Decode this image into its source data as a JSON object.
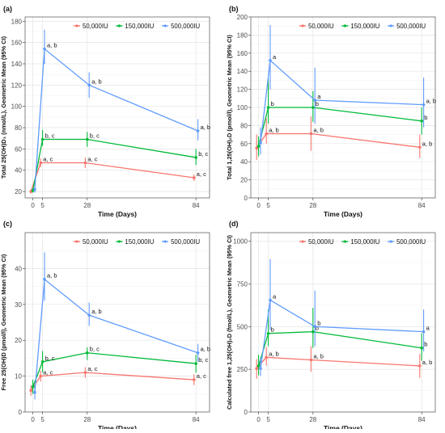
{
  "colors": {
    "s50k": "#F8766D",
    "s150k": "#00BA38",
    "s500k": "#619CFF",
    "border": "#666666"
  },
  "chart_data": [
    {
      "type": "line",
      "panel_label": "(a)",
      "xlabel": "Time (Days)",
      "ylabel": "Total 25(OH)D₃ (nmol/L), Geometric Mean (95% CI)",
      "x": [
        0,
        5,
        28,
        84
      ],
      "xticks": [
        "0",
        "5",
        "28",
        "84"
      ],
      "xlim": [
        -4,
        91
      ],
      "ylim": [
        14,
        184
      ],
      "yticks": [
        20,
        40,
        60,
        80,
        100,
        120,
        140,
        160,
        180
      ],
      "grid": true,
      "legend_position": "top-right",
      "series": [
        {
          "name": "50,000IU",
          "color": "#F8766D",
          "dx": -1.0,
          "values": [
            20,
            47,
            47,
            33
          ],
          "lower": [
            18,
            43,
            42,
            30
          ],
          "upper": [
            22,
            51,
            52,
            36
          ],
          "labels": [
            "",
            "a, c",
            "a, c",
            "a, c"
          ]
        },
        {
          "name": "150,000IU",
          "color": "#00BA38",
          "dx": 0,
          "values": [
            21,
            69,
            69,
            52
          ],
          "lower": [
            19,
            63,
            62,
            45
          ],
          "upper": [
            23,
            78,
            76,
            60
          ],
          "labels": [
            "",
            "b, c",
            "b, c",
            "b, c"
          ]
        },
        {
          "name": "500,000IU",
          "color": "#619CFF",
          "dx": 1.0,
          "values": [
            22,
            154,
            120,
            77
          ],
          "lower": [
            19,
            140,
            108,
            68
          ],
          "upper": [
            24,
            172,
            132,
            88
          ],
          "labels": [
            "",
            "a, b",
            "a, b",
            "a, b"
          ]
        }
      ]
    },
    {
      "type": "line",
      "panel_label": "(b)",
      "xlabel": "Time (Days)",
      "ylabel": "Total 1,25(OH)₂D (pmol/l), Geometric Mean (95% CI)",
      "x": [
        0,
        5,
        28,
        84
      ],
      "xticks": [
        "0",
        "5",
        "28",
        "84"
      ],
      "xlim": [
        -4,
        91
      ],
      "ylim": [
        0,
        200
      ],
      "yticks": [
        0,
        20,
        40,
        60,
        80,
        100,
        120,
        140,
        160,
        180,
        200
      ],
      "grid": true,
      "legend_position": "top-right",
      "series": [
        {
          "name": "50,000IU",
          "color": "#F8766D",
          "dx": -1.0,
          "values": [
            55,
            71,
            71,
            56
          ],
          "lower": [
            42,
            60,
            52,
            44
          ],
          "upper": [
            70,
            88,
            90,
            70
          ],
          "labels": [
            "",
            "a, b",
            "a, b",
            "a, b"
          ]
        },
        {
          "name": "150,000IU",
          "color": "#00BA38",
          "dx": 0,
          "values": [
            57,
            100,
            100,
            85
          ],
          "lower": [
            46,
            82,
            84,
            70
          ],
          "upper": [
            68,
            132,
            118,
            100
          ],
          "labels": [
            "",
            "b",
            "b",
            "b"
          ]
        },
        {
          "name": "500,000IU",
          "color": "#619CFF",
          "dx": 1.0,
          "values": [
            61,
            152,
            108,
            103
          ],
          "lower": [
            48,
            120,
            82,
            78
          ],
          "upper": [
            78,
            191,
            144,
            133
          ],
          "labels": [
            "",
            "a",
            "a",
            "a, b"
          ]
        }
      ]
    },
    {
      "type": "line",
      "panel_label": "(c)",
      "xlabel": "Time (Days)",
      "ylabel": "Free 25(OH)D (pmol/l), Geometric Mean (95% CI)",
      "x": [
        0,
        5,
        28,
        84
      ],
      "xticks": [
        "0",
        "5",
        "28",
        "84"
      ],
      "xlim": [
        -4,
        91
      ],
      "ylim": [
        0,
        50
      ],
      "yticks": [
        0,
        10,
        20,
        30,
        40
      ],
      "grid": true,
      "legend_position": "top-right",
      "series": [
        {
          "name": "50,000IU",
          "color": "#F8766D",
          "dx": -1.0,
          "values": [
            6,
            10,
            11,
            9
          ],
          "lower": [
            4.5,
            8.5,
            9.5,
            7.5
          ],
          "upper": [
            7.5,
            11.5,
            12.5,
            10.5
          ],
          "labels": [
            "",
            "a, c",
            "a, c",
            "a, c"
          ]
        },
        {
          "name": "150,000IU",
          "color": "#00BA38",
          "dx": 0,
          "values": [
            7,
            14,
            16.5,
            13.5
          ],
          "lower": [
            5,
            11,
            14.5,
            11
          ],
          "upper": [
            9,
            17,
            18,
            16
          ],
          "labels": [
            "",
            "b, c",
            "b, c",
            "b, c"
          ]
        },
        {
          "name": "500,000IU",
          "color": "#619CFF",
          "dx": 1.0,
          "values": [
            5.5,
            37,
            27,
            16.5
          ],
          "lower": [
            3.5,
            31,
            24,
            14
          ],
          "upper": [
            7.5,
            44.5,
            30.5,
            19
          ],
          "labels": [
            "",
            "a, b",
            "a, b",
            "a, b"
          ]
        }
      ]
    },
    {
      "type": "line",
      "panel_label": "(d)",
      "xlabel": "Time (Days)",
      "ylabel": "Calculated free 1,25(OH)₂D (fmol/L), Geometric Mean (95% CI)",
      "x": [
        0,
        5,
        28,
        84
      ],
      "xticks": [
        "0",
        "5",
        "28",
        "84"
      ],
      "xlim": [
        -4,
        91
      ],
      "ylim": [
        0,
        1050
      ],
      "yticks": [
        0,
        250,
        500,
        750,
        1000
      ],
      "grid": true,
      "legend_position": "top-right",
      "series": [
        {
          "name": "50,000IU",
          "color": "#F8766D",
          "dx": -1.0,
          "values": [
            255,
            320,
            305,
            270
          ],
          "lower": [
            195,
            270,
            235,
            200
          ],
          "upper": [
            310,
            380,
            385,
            340
          ],
          "labels": [
            "",
            "a, b",
            "a, b",
            "a, b"
          ]
        },
        {
          "name": "150,000IU",
          "color": "#00BA38",
          "dx": 0,
          "values": [
            270,
            460,
            470,
            375
          ],
          "lower": [
            215,
            385,
            375,
            300
          ],
          "upper": [
            335,
            600,
            610,
            460
          ],
          "labels": [
            "",
            "b",
            "b",
            "b"
          ]
        },
        {
          "name": "500,000IU",
          "color": "#619CFF",
          "dx": 1.0,
          "values": [
            255,
            655,
            500,
            470
          ],
          "lower": [
            210,
            480,
            385,
            355
          ],
          "upper": [
            320,
            895,
            710,
            600
          ],
          "labels": [
            "",
            "a",
            "b",
            "a"
          ]
        }
      ]
    }
  ]
}
